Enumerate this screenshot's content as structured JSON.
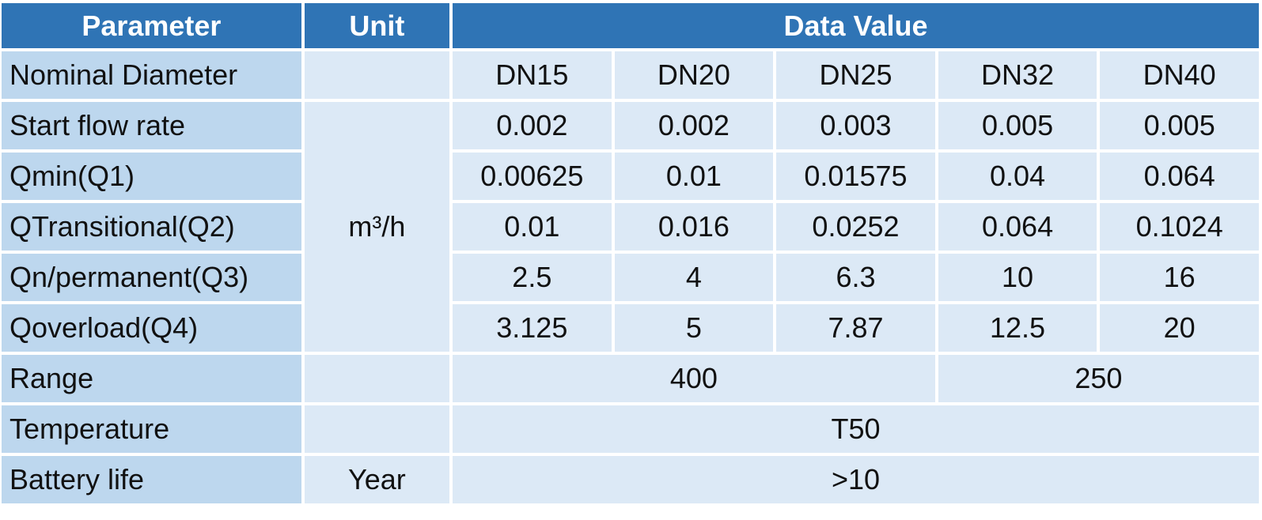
{
  "header": {
    "parameter": "Parameter",
    "unit": "Unit",
    "data_value": "Data Value"
  },
  "rows": {
    "nominal_diameter": {
      "label": "Nominal Diameter",
      "values": [
        "DN15",
        "DN20",
        "DN25",
        "DN32",
        "DN40"
      ]
    },
    "start_flow_rate": {
      "label": "Start flow rate",
      "values": [
        "0.002",
        "0.002",
        "0.003",
        "0.005",
        "0.005"
      ]
    },
    "qmin": {
      "label": "Qmin(Q1)",
      "values": [
        "0.00625",
        "0.01",
        "0.01575",
        "0.04",
        "0.064"
      ]
    },
    "qtransitional": {
      "label": "QTransitional(Q2)",
      "values": [
        "0.01",
        "0.016",
        "0.0252",
        "0.064",
        "0.1024"
      ]
    },
    "qn_permanent": {
      "label": "Qn/permanent(Q3)",
      "values": [
        "2.5",
        "4",
        "6.3",
        "10",
        "16"
      ]
    },
    "qoverload": {
      "label": "Qoverload(Q4)",
      "values": [
        "3.125",
        "5",
        "7.87",
        "12.5",
        "20"
      ]
    },
    "range": {
      "label": "Range",
      "values": [
        "400",
        "250"
      ]
    },
    "temperature": {
      "label": "Temperature",
      "value": "T50"
    },
    "battery_life": {
      "label": "Battery life",
      "unit": "Year",
      "value": ">10"
    }
  },
  "flow_unit": "m³/h",
  "colors": {
    "header_bg": "#2f74b5",
    "param_bg": "#bdd7ee",
    "cell_bg": "#dce9f6"
  }
}
